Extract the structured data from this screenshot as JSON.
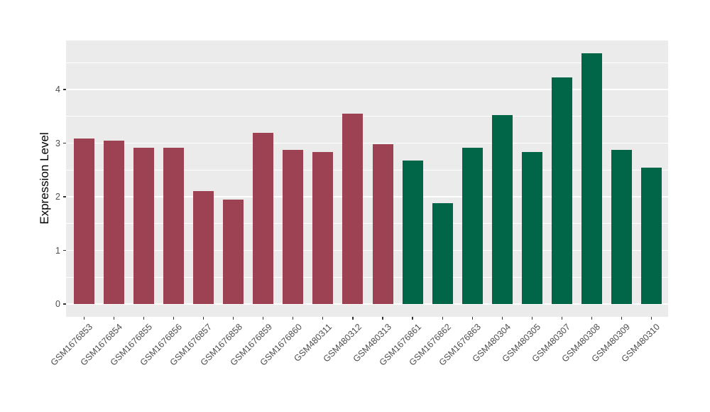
{
  "chart_data": {
    "type": "bar",
    "title": "",
    "xlabel": "",
    "ylabel": "Expression Level",
    "categories": [
      "GSM1676853",
      "GSM1676854",
      "GSM1676855",
      "GSM1676856",
      "GSM1676857",
      "GSM1676858",
      "GSM1676859",
      "GSM1676860",
      "GSM480311",
      "GSM480312",
      "GSM480313",
      "GSM1676861",
      "GSM1676862",
      "GSM1676863",
      "GSM480304",
      "GSM480305",
      "GSM480307",
      "GSM480308",
      "GSM480309",
      "GSM480310"
    ],
    "values": [
      3.08,
      3.05,
      2.92,
      2.92,
      2.1,
      1.95,
      3.19,
      2.87,
      2.83,
      3.55,
      2.98,
      2.68,
      1.88,
      2.92,
      3.52,
      2.83,
      4.22,
      4.68,
      2.87,
      2.54
    ],
    "bar_colors": [
      "#9C4252",
      "#9C4252",
      "#9C4252",
      "#9C4252",
      "#9C4252",
      "#9C4252",
      "#9C4252",
      "#9C4252",
      "#9C4252",
      "#9C4252",
      "#9C4252",
      "#006647",
      "#006647",
      "#006647",
      "#006647",
      "#006647",
      "#006647",
      "#006647",
      "#006647",
      "#006647"
    ],
    "group_colors": {
      "left_group": "#9C4252",
      "right_group": "#006647"
    },
    "yticks": [
      "0",
      "1",
      "2",
      "3",
      "4"
    ],
    "ylim": [
      0,
      4.92
    ],
    "minor_grid_step": 0.5,
    "grid": "on",
    "legend_position": "none",
    "panel_bg": "#EBEBEB",
    "grid_color": "#FFFFFF",
    "axis_text_color": "#4D4D4D",
    "axis_title_color": "#000000",
    "tick_mark_color": "#333333"
  }
}
